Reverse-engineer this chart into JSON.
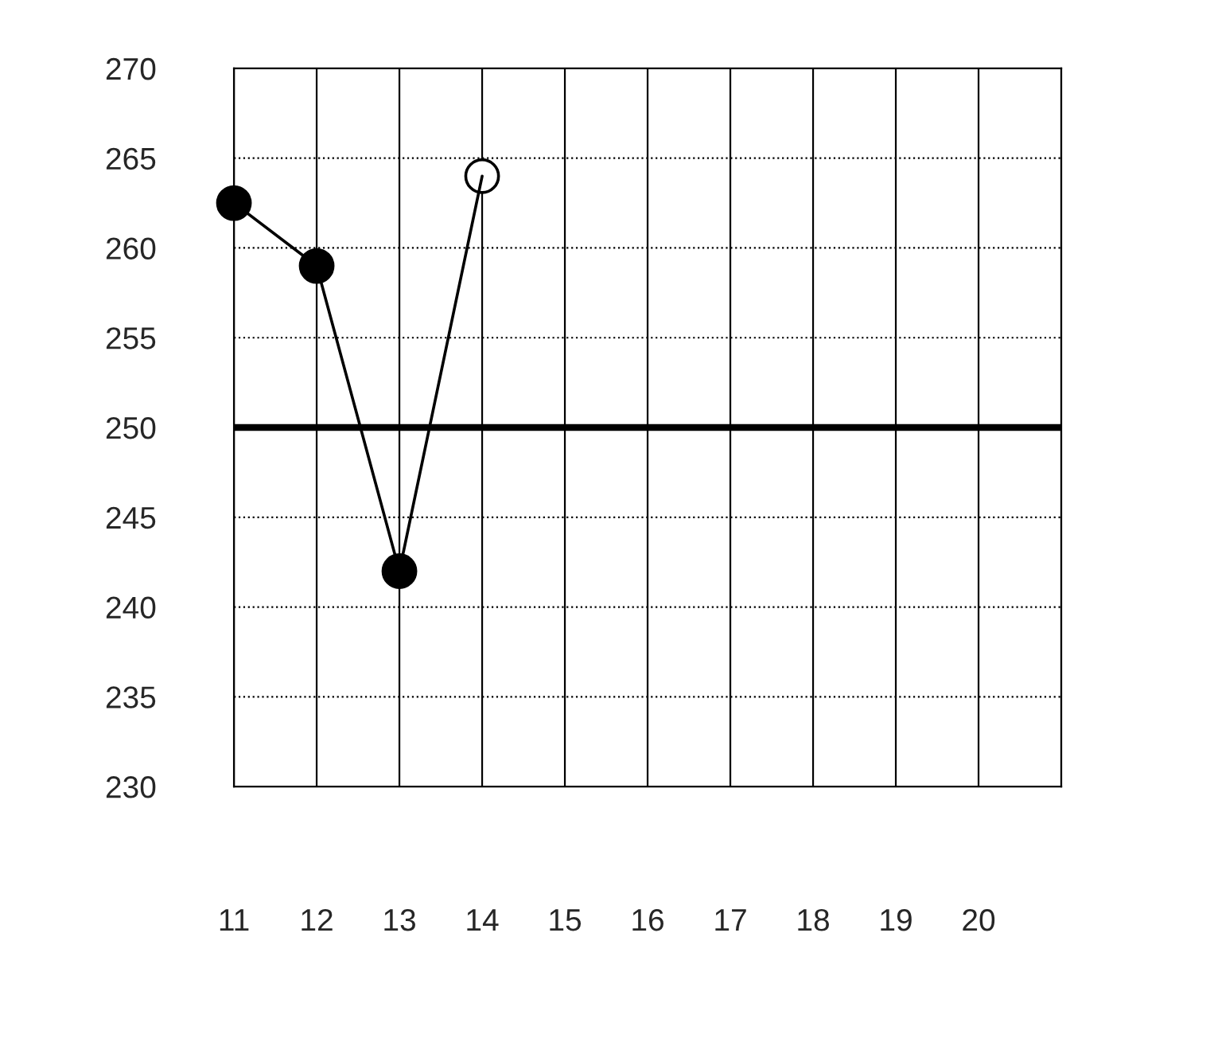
{
  "chart_data": {
    "type": "line",
    "x": [
      11,
      12,
      13,
      14
    ],
    "series": [
      {
        "color": "#000000",
        "colors": [
          "#000000",
          "#000000",
          "#000000",
          "#ffffff"
        ],
        "values": [
          262.5,
          259,
          242,
          264
        ]
      }
    ],
    "xlim": [
      11,
      21
    ],
    "xticks": [
      11,
      12,
      13,
      14,
      15,
      16,
      17,
      18,
      19,
      20,
      {
        "value": 21,
        "label": null
      }
    ],
    "ylim": [
      230,
      270
    ],
    "yticks": [
      230,
      235,
      240,
      245,
      250,
      255,
      260,
      265,
      270
    ],
    "ref_lines": [
      {
        "axis": "y",
        "value": 250,
        "color": "#000000",
        "line_style": "solid"
      }
    ],
    "grid": true,
    "marker": "circle",
    "line_style": "solid"
  }
}
